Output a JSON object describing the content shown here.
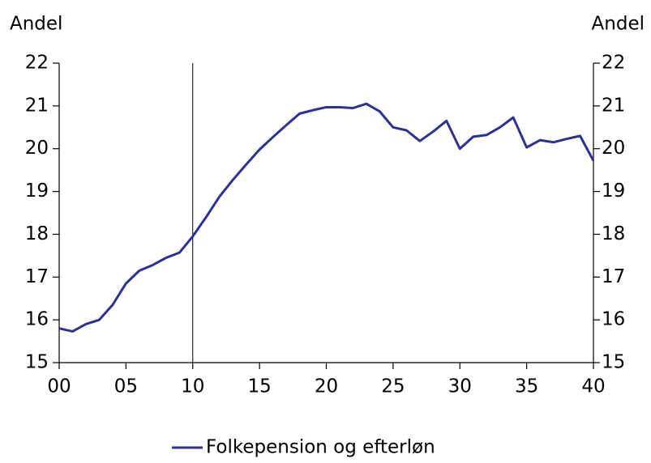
{
  "chart_data": {
    "type": "line",
    "ylabel": "Andel",
    "y2label": "Andel",
    "x": [
      0,
      1,
      2,
      3,
      4,
      5,
      6,
      7,
      8,
      9,
      10,
      11,
      12,
      13,
      14,
      15,
      16,
      17,
      18,
      19,
      20,
      21,
      22,
      23,
      24,
      25,
      26,
      27,
      28,
      29,
      30,
      31,
      32,
      33,
      34,
      35,
      36,
      37,
      38,
      39,
      40
    ],
    "series": [
      {
        "name": "Folkepension og efterløn",
        "color": "#2e3192",
        "values": [
          15.8,
          15.73,
          15.9,
          16.0,
          16.35,
          16.85,
          17.15,
          17.28,
          17.45,
          17.57,
          17.95,
          18.4,
          18.88,
          19.27,
          19.63,
          19.98,
          20.27,
          20.55,
          20.82,
          20.9,
          20.97,
          20.97,
          20.95,
          21.05,
          20.87,
          20.5,
          20.43,
          20.18,
          20.4,
          20.65,
          20.0,
          20.28,
          20.32,
          20.5,
          20.73,
          20.03,
          20.2,
          20.15,
          20.23,
          20.3,
          19.72
        ]
      }
    ],
    "xlim": [
      0,
      40
    ],
    "xticks": [
      {
        "value": 0,
        "label": "00"
      },
      {
        "value": 5,
        "label": "05"
      },
      10,
      15,
      20,
      25,
      30,
      35,
      40
    ],
    "ylim": [
      15,
      22
    ],
    "yticks": [
      15,
      16,
      17,
      18,
      19,
      20,
      21,
      22
    ],
    "y2lim": [
      15,
      22
    ],
    "y2ticks": [
      15,
      16,
      17,
      18,
      19,
      20,
      21,
      22
    ],
    "vline": 10,
    "legend": "bottom"
  }
}
